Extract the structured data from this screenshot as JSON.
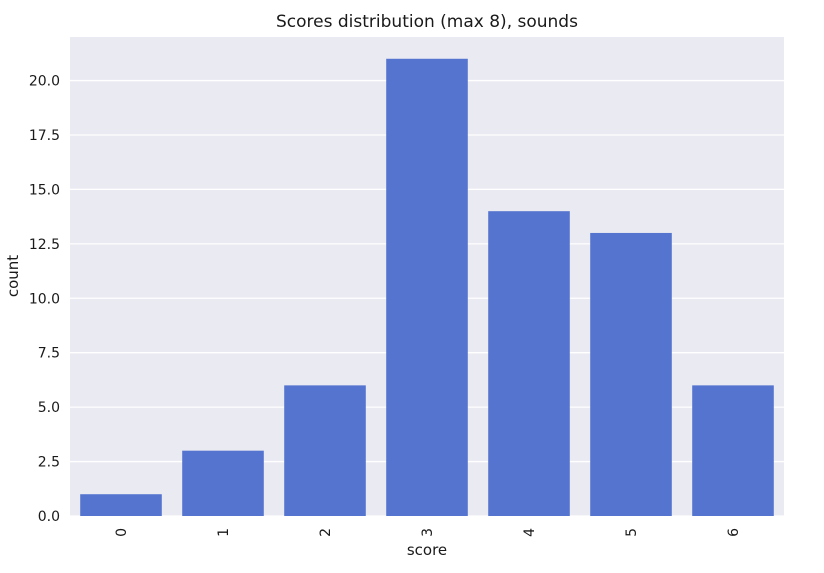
{
  "chart_data": {
    "type": "bar",
    "title": "Scores distribution (max 8), sounds",
    "xlabel": "score",
    "ylabel": "count",
    "categories": [
      "0",
      "1",
      "2",
      "3",
      "4",
      "5",
      "6"
    ],
    "values": [
      1,
      3,
      6,
      21,
      14,
      13,
      6
    ],
    "ylim": [
      0,
      22
    ],
    "yticks": [
      "0.0",
      "2.5",
      "5.0",
      "7.5",
      "10.0",
      "12.5",
      "15.0",
      "17.5",
      "20.0"
    ],
    "grid": true,
    "legend": "none",
    "colors": {
      "bar": "#5574d0",
      "background": "#eaeaf2",
      "grid": "#ffffff"
    }
  }
}
